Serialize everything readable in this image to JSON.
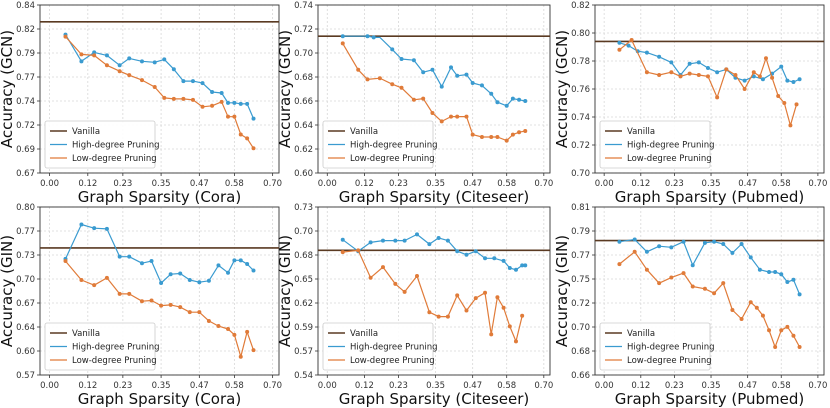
{
  "colors": {
    "vanilla": "#5a3a22",
    "high": "#3a9bd0",
    "low": "#e07b39",
    "grid": "#d8d8d8",
    "frame": "#333333"
  },
  "legend_labels": {
    "vanilla": "Vanilla",
    "high": "High-degree Pruning",
    "low": "Low-degree Pruning"
  },
  "chart_data": [
    {
      "type": "line",
      "xlabel": "Graph Sparsity (Cora)",
      "ylabel": "Accuracy (GCN)",
      "xlim": [
        -0.03,
        0.72
      ],
      "ylim": [
        0.67,
        0.84
      ],
      "xticks": [
        "0.00",
        "0.12",
        "0.23",
        "0.35",
        "0.47",
        "0.58",
        "0.70"
      ],
      "yticks": [
        "0.67",
        "0.69",
        "0.72",
        "0.74",
        "0.77",
        "0.79",
        "0.82",
        "0.84"
      ],
      "vanilla": 0.823,
      "series": [
        {
          "name": "High-degree Pruning",
          "key": "high",
          "x": [
            0.05,
            0.1,
            0.14,
            0.18,
            0.22,
            0.25,
            0.29,
            0.33,
            0.36,
            0.39,
            0.42,
            0.45,
            0.48,
            0.51,
            0.54,
            0.56,
            0.58,
            0.6,
            0.62,
            0.64
          ],
          "y": [
            0.81,
            0.783,
            0.792,
            0.789,
            0.779,
            0.786,
            0.783,
            0.782,
            0.785,
            0.775,
            0.763,
            0.763,
            0.761,
            0.752,
            0.751,
            0.741,
            0.741,
            0.74,
            0.74,
            0.725
          ]
        },
        {
          "name": "Low-degree Pruning",
          "key": "low",
          "x": [
            0.05,
            0.1,
            0.14,
            0.18,
            0.22,
            0.25,
            0.29,
            0.33,
            0.36,
            0.39,
            0.42,
            0.45,
            0.48,
            0.51,
            0.54,
            0.56,
            0.58,
            0.6,
            0.62,
            0.64
          ],
          "y": [
            0.808,
            0.79,
            0.789,
            0.779,
            0.773,
            0.769,
            0.764,
            0.757,
            0.746,
            0.745,
            0.745,
            0.744,
            0.737,
            0.738,
            0.742,
            0.727,
            0.727,
            0.709,
            0.705,
            0.695
          ]
        }
      ]
    },
    {
      "type": "line",
      "xlabel": "Graph Sparsity (Citeseer)",
      "ylabel": "Accuracy (GCN)",
      "xlim": [
        -0.03,
        0.72
      ],
      "ylim": [
        0.6,
        0.74
      ],
      "xticks": [
        "0.00",
        "0.12",
        "0.23",
        "0.35",
        "0.47",
        "0.58",
        "0.70"
      ],
      "yticks": [
        "0.60",
        "0.62",
        "0.64",
        "0.66",
        "0.68",
        "0.70",
        "0.72",
        "0.74"
      ],
      "vanilla": 0.714,
      "series": [
        {
          "name": "High-degree Pruning",
          "key": "high",
          "x": [
            0.05,
            0.1,
            0.13,
            0.15,
            0.17,
            0.21,
            0.24,
            0.28,
            0.31,
            0.34,
            0.37,
            0.4,
            0.42,
            0.45,
            0.47,
            0.5,
            0.53,
            0.55,
            0.58,
            0.6,
            0.62,
            0.64
          ],
          "y": [
            0.714,
            0.714,
            0.714,
            0.713,
            0.713,
            0.703,
            0.695,
            0.694,
            0.684,
            0.686,
            0.672,
            0.688,
            0.681,
            0.682,
            0.675,
            0.673,
            0.666,
            0.659,
            0.656,
            0.662,
            0.661,
            0.66
          ],
          "no_marker": [
            1,
            4
          ]
        },
        {
          "name": "Low-degree Pruning",
          "key": "low",
          "x": [
            0.05,
            0.1,
            0.13,
            0.17,
            0.21,
            0.24,
            0.28,
            0.31,
            0.34,
            0.37,
            0.4,
            0.42,
            0.45,
            0.47,
            0.5,
            0.53,
            0.55,
            0.58,
            0.6,
            0.62,
            0.64
          ],
          "y": [
            0.708,
            0.686,
            0.678,
            0.679,
            0.674,
            0.671,
            0.661,
            0.662,
            0.65,
            0.643,
            0.647,
            0.647,
            0.647,
            0.632,
            0.63,
            0.63,
            0.63,
            0.627,
            0.632,
            0.634,
            0.635
          ]
        }
      ]
    },
    {
      "type": "line",
      "xlabel": "Graph Sparsity (Pubmed)",
      "ylabel": "Accuracy (GCN)",
      "xlim": [
        -0.03,
        0.72
      ],
      "ylim": [
        0.7,
        0.82
      ],
      "xticks": [
        "0.00",
        "0.12",
        "0.23",
        "0.35",
        "0.47",
        "0.58",
        "0.70"
      ],
      "yticks": [
        "0.70",
        "0.72",
        "0.74",
        "0.76",
        "0.78",
        "0.80",
        "0.82"
      ],
      "vanilla": 0.794,
      "series": [
        {
          "name": "High-degree Pruning",
          "key": "high",
          "x": [
            0.05,
            0.08,
            0.11,
            0.14,
            0.18,
            0.22,
            0.25,
            0.28,
            0.31,
            0.34,
            0.37,
            0.4,
            0.43,
            0.46,
            0.49,
            0.52,
            0.55,
            0.58,
            0.6,
            0.62,
            0.64
          ],
          "y": [
            0.793,
            0.791,
            0.787,
            0.786,
            0.783,
            0.779,
            0.77,
            0.778,
            0.779,
            0.775,
            0.772,
            0.774,
            0.768,
            0.766,
            0.769,
            0.767,
            0.771,
            0.776,
            0.766,
            0.765,
            0.767
          ]
        },
        {
          "name": "Low-degree Pruning",
          "key": "low",
          "x": [
            0.05,
            0.09,
            0.14,
            0.18,
            0.22,
            0.25,
            0.28,
            0.31,
            0.34,
            0.37,
            0.4,
            0.43,
            0.46,
            0.49,
            0.51,
            0.53,
            0.55,
            0.57,
            0.59,
            0.61,
            0.63
          ],
          "y": [
            0.788,
            0.795,
            0.772,
            0.77,
            0.772,
            0.769,
            0.771,
            0.77,
            0.769,
            0.754,
            0.774,
            0.77,
            0.76,
            0.772,
            0.769,
            0.782,
            0.768,
            0.755,
            0.75,
            0.734,
            0.749
          ]
        }
      ]
    },
    {
      "type": "line",
      "xlabel": "Graph Sparsity (Cora)",
      "ylabel": "Accuracy (GIN)",
      "xlim": [
        -0.03,
        0.72
      ],
      "ylim": [
        0.57,
        0.8
      ],
      "xticks": [
        "0.00",
        "0.12",
        "0.23",
        "0.35",
        "0.47",
        "0.58",
        "0.70"
      ],
      "yticks": [
        "0.57",
        "0.60",
        "0.64",
        "0.67",
        "0.70",
        "0.73",
        "0.77",
        "0.80"
      ],
      "vanilla": 0.744,
      "series": [
        {
          "name": "High-degree Pruning",
          "key": "high",
          "x": [
            0.05,
            0.1,
            0.14,
            0.18,
            0.22,
            0.25,
            0.29,
            0.32,
            0.35,
            0.38,
            0.41,
            0.44,
            0.47,
            0.5,
            0.53,
            0.56,
            0.58,
            0.6,
            0.62,
            0.64
          ],
          "y": [
            0.729,
            0.776,
            0.771,
            0.77,
            0.732,
            0.732,
            0.723,
            0.726,
            0.696,
            0.708,
            0.709,
            0.7,
            0.697,
            0.699,
            0.72,
            0.71,
            0.727,
            0.727,
            0.722,
            0.713
          ]
        },
        {
          "name": "Low-degree Pruning",
          "key": "low",
          "x": [
            0.05,
            0.1,
            0.14,
            0.18,
            0.22,
            0.25,
            0.29,
            0.32,
            0.35,
            0.38,
            0.41,
            0.44,
            0.47,
            0.5,
            0.53,
            0.56,
            0.58,
            0.6,
            0.62,
            0.64
          ],
          "y": [
            0.726,
            0.7,
            0.693,
            0.703,
            0.681,
            0.681,
            0.671,
            0.672,
            0.665,
            0.666,
            0.663,
            0.656,
            0.656,
            0.644,
            0.637,
            0.633,
            0.625,
            0.595,
            0.629,
            0.604
          ]
        }
      ]
    },
    {
      "type": "line",
      "xlabel": "Graph Sparsity (Citeseer)",
      "ylabel": "Accuracy (GIN)",
      "xlim": [
        -0.03,
        0.72
      ],
      "ylim": [
        0.54,
        0.73
      ],
      "xticks": [
        "0.00",
        "0.12",
        "0.23",
        "0.35",
        "0.47",
        "0.58",
        "0.70"
      ],
      "yticks": [
        "0.54",
        "0.57",
        "0.59",
        "0.62",
        "0.65",
        "0.68",
        "0.70",
        "0.73"
      ],
      "vanilla": 0.681,
      "series": [
        {
          "name": "High-degree Pruning",
          "key": "high",
          "x": [
            0.05,
            0.1,
            0.14,
            0.18,
            0.22,
            0.25,
            0.29,
            0.33,
            0.36,
            0.39,
            0.42,
            0.45,
            0.48,
            0.51,
            0.54,
            0.57,
            0.59,
            0.61,
            0.63,
            0.64
          ],
          "y": [
            0.693,
            0.68,
            0.69,
            0.692,
            0.692,
            0.692,
            0.699,
            0.688,
            0.695,
            0.692,
            0.68,
            0.676,
            0.68,
            0.672,
            0.672,
            0.669,
            0.661,
            0.659,
            0.664,
            0.664
          ]
        },
        {
          "name": "Low-degree Pruning",
          "key": "low",
          "x": [
            0.05,
            0.1,
            0.14,
            0.18,
            0.22,
            0.25,
            0.29,
            0.33,
            0.36,
            0.39,
            0.42,
            0.45,
            0.48,
            0.51,
            0.53,
            0.55,
            0.57,
            0.59,
            0.61,
            0.63
          ],
          "y": [
            0.679,
            0.681,
            0.65,
            0.662,
            0.643,
            0.634,
            0.652,
            0.611,
            0.606,
            0.606,
            0.63,
            0.613,
            0.627,
            0.633,
            0.586,
            0.628,
            0.616,
            0.595,
            0.578,
            0.607
          ]
        }
      ]
    },
    {
      "type": "line",
      "xlabel": "Graph Sparsity (Pubmed)",
      "ylabel": "Accuracy (GIN)",
      "xlim": [
        -0.03,
        0.72
      ],
      "ylim": [
        0.66,
        0.81
      ],
      "xticks": [
        "0.00",
        "0.12",
        "0.23",
        "0.35",
        "0.47",
        "0.58",
        "0.70"
      ],
      "yticks": [
        "0.66",
        "0.68",
        "0.70",
        "0.72",
        "0.75",
        "0.77",
        "0.79",
        "0.81"
      ],
      "vanilla": 0.78,
      "series": [
        {
          "name": "High-degree Pruning",
          "key": "high",
          "x": [
            0.05,
            0.1,
            0.14,
            0.18,
            0.22,
            0.26,
            0.29,
            0.33,
            0.36,
            0.39,
            0.42,
            0.45,
            0.48,
            0.51,
            0.54,
            0.56,
            0.58,
            0.6,
            0.62,
            0.64
          ],
          "y": [
            0.779,
            0.781,
            0.77,
            0.775,
            0.774,
            0.779,
            0.758,
            0.778,
            0.779,
            0.777,
            0.769,
            0.777,
            0.765,
            0.754,
            0.752,
            0.752,
            0.75,
            0.743,
            0.745,
            0.732
          ]
        },
        {
          "name": "Low-degree Pruning",
          "key": "low",
          "x": [
            0.05,
            0.1,
            0.14,
            0.18,
            0.22,
            0.26,
            0.29,
            0.33,
            0.36,
            0.39,
            0.42,
            0.45,
            0.48,
            0.5,
            0.52,
            0.54,
            0.56,
            0.58,
            0.6,
            0.62,
            0.64
          ],
          "y": [
            0.759,
            0.77,
            0.754,
            0.742,
            0.747,
            0.751,
            0.739,
            0.737,
            0.733,
            0.742,
            0.718,
            0.71,
            0.725,
            0.72,
            0.713,
            0.7,
            0.685,
            0.7,
            0.703,
            0.695,
            0.685
          ]
        }
      ]
    }
  ]
}
